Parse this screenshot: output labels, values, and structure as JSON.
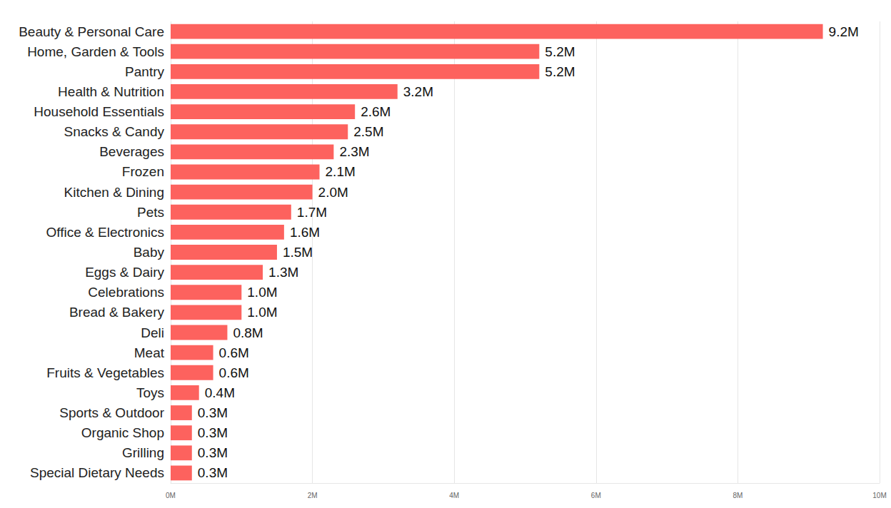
{
  "chart_data": {
    "type": "bar",
    "orientation": "horizontal",
    "categories": [
      "Beauty & Personal Care",
      "Home, Garden & Tools",
      "Pantry",
      "Health & Nutrition",
      "Household Essentials",
      "Snacks & Candy",
      "Beverages",
      "Frozen",
      "Kitchen & Dining",
      "Pets",
      "Office & Electronics",
      "Baby",
      "Eggs & Dairy",
      "Celebrations",
      "Bread & Bakery",
      "Deli",
      "Meat",
      "Fruits & Vegetables",
      "Toys",
      "Sports & Outdoor",
      "Organic Shop",
      "Grilling",
      "Special Dietary Needs"
    ],
    "values": [
      9.2,
      5.2,
      5.2,
      3.2,
      2.6,
      2.5,
      2.3,
      2.1,
      2.0,
      1.7,
      1.6,
      1.5,
      1.3,
      1.0,
      1.0,
      0.8,
      0.6,
      0.6,
      0.4,
      0.3,
      0.3,
      0.3,
      0.3
    ],
    "value_labels": [
      "9.2M",
      "5.2M",
      "5.2M",
      "3.2M",
      "2.6M",
      "2.5M",
      "2.3M",
      "2.1M",
      "2.0M",
      "1.7M",
      "1.6M",
      "1.5M",
      "1.3M",
      "1.0M",
      "1.0M",
      "0.8M",
      "0.6M",
      "0.6M",
      "0.4M",
      "0.3M",
      "0.3M",
      "0.3M",
      "0.3M"
    ],
    "color": "#fd625e",
    "xlim": [
      0,
      10
    ],
    "xticks": [
      {
        "value": 0,
        "label": "0M"
      },
      {
        "value": 2,
        "label": "2M"
      },
      {
        "value": 4,
        "label": "4M"
      },
      {
        "value": 6,
        "label": "6M"
      },
      {
        "value": 8,
        "label": "8M"
      },
      {
        "value": 10,
        "label": "10M"
      }
    ],
    "grid": true,
    "data_labels": true
  }
}
